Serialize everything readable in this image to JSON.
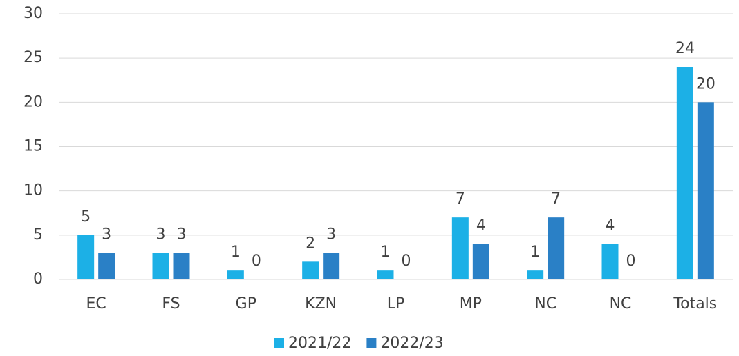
{
  "chart_data": {
    "type": "bar",
    "categories": [
      "EC",
      "FS",
      "GP",
      "KZN",
      "LP",
      "MP",
      "NC",
      "NC",
      "Totals"
    ],
    "series": [
      {
        "name": "2021/22",
        "color": "#1cb0e6",
        "values": [
          5,
          3,
          1,
          2,
          1,
          7,
          1,
          4,
          24
        ]
      },
      {
        "name": "2022/23",
        "color": "#2a80c6",
        "values": [
          3,
          3,
          0,
          3,
          0,
          4,
          7,
          0,
          20
        ]
      }
    ],
    "ylim": [
      0,
      30
    ],
    "yticks": [
      0,
      5,
      10,
      15,
      20,
      25,
      30
    ],
    "grid": true,
    "legend": "bottom"
  }
}
